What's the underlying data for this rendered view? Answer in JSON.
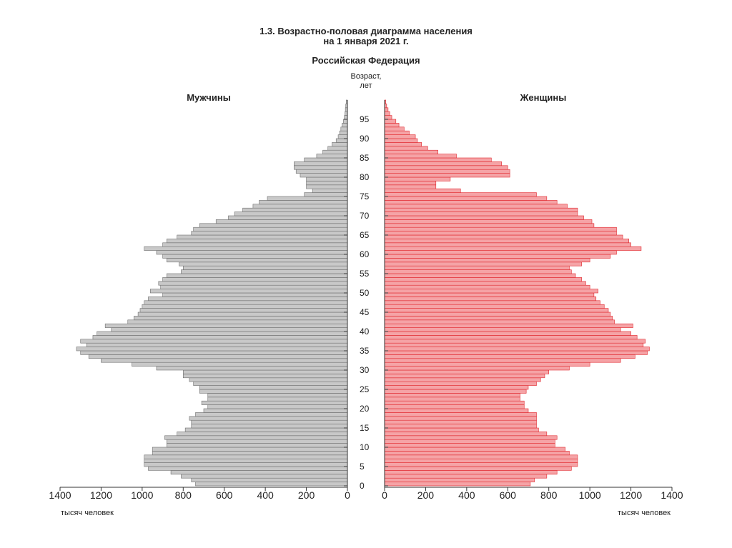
{
  "chart_data": {
    "type": "bar",
    "title_line1": "1.3. Возрастно-половая диаграмма населения",
    "title_line2": "на 1 января 2021 г.",
    "subtitle": "Российская Федерация",
    "age_axis_label_line1": "Возраст,",
    "age_axis_label_line2": "лет",
    "unit_label_left": "тысяч человек",
    "unit_label_right": "тысяч человек",
    "x_ticks_left": [
      "1400",
      "1200",
      "1000",
      "800",
      "600",
      "400",
      "200",
      "0"
    ],
    "x_ticks_right": [
      "0",
      "200",
      "400",
      "600",
      "800",
      "1000",
      "1200",
      "1400"
    ],
    "age_ticks": [
      "0",
      "5",
      "10",
      "15",
      "20",
      "25",
      "30",
      "35",
      "40",
      "45",
      "50",
      "55",
      "60",
      "65",
      "70",
      "75",
      "80",
      "85",
      "90",
      "95"
    ],
    "xlim": [
      0,
      1400
    ],
    "ages": [
      0,
      1,
      2,
      3,
      4,
      5,
      6,
      7,
      8,
      9,
      10,
      11,
      12,
      13,
      14,
      15,
      16,
      17,
      18,
      19,
      20,
      21,
      22,
      23,
      24,
      25,
      26,
      27,
      28,
      29,
      30,
      31,
      32,
      33,
      34,
      35,
      36,
      37,
      38,
      39,
      40,
      41,
      42,
      43,
      44,
      45,
      46,
      47,
      48,
      49,
      50,
      51,
      52,
      53,
      54,
      55,
      56,
      57,
      58,
      59,
      60,
      61,
      62,
      63,
      64,
      65,
      66,
      67,
      68,
      69,
      70,
      71,
      72,
      73,
      74,
      75,
      76,
      77,
      78,
      79,
      80,
      81,
      82,
      83,
      84,
      85,
      86,
      87,
      88,
      89,
      90,
      91,
      92,
      93,
      94,
      95,
      96,
      97,
      98,
      99
    ],
    "series": [
      {
        "name": "Мужчины",
        "color": "#c8c8c8",
        "values": [
          740,
          760,
          810,
          860,
          970,
          990,
          990,
          990,
          950,
          950,
          880,
          880,
          890,
          830,
          790,
          760,
          760,
          770,
          740,
          700,
          680,
          710,
          680,
          680,
          720,
          720,
          750,
          770,
          800,
          800,
          930,
          1050,
          1200,
          1260,
          1300,
          1320,
          1270,
          1300,
          1240,
          1220,
          1150,
          1180,
          1070,
          1040,
          1020,
          1010,
          1000,
          990,
          970,
          900,
          960,
          910,
          920,
          900,
          880,
          810,
          800,
          820,
          880,
          900,
          930,
          990,
          900,
          880,
          830,
          760,
          750,
          720,
          640,
          580,
          550,
          510,
          460,
          430,
          390,
          210,
          170,
          200,
          200,
          200,
          230,
          250,
          260,
          260,
          210,
          150,
          120,
          95,
          75,
          55,
          45,
          38,
          32,
          26,
          20,
          15,
          12,
          10,
          8,
          6,
          5,
          4
        ]
      },
      {
        "name": "Женщины",
        "color": "#f5a3a6",
        "values": [
          710,
          730,
          790,
          840,
          910,
          940,
          940,
          940,
          900,
          880,
          830,
          830,
          840,
          790,
          750,
          740,
          740,
          740,
          740,
          700,
          680,
          680,
          660,
          660,
          690,
          700,
          740,
          760,
          780,
          800,
          900,
          1000,
          1150,
          1220,
          1280,
          1290,
          1260,
          1270,
          1230,
          1200,
          1150,
          1210,
          1120,
          1110,
          1100,
          1090,
          1070,
          1050,
          1030,
          1020,
          1040,
          1000,
          980,
          960,
          930,
          910,
          900,
          960,
          1000,
          1100,
          1130,
          1250,
          1200,
          1190,
          1160,
          1130,
          1130,
          1020,
          1010,
          970,
          940,
          940,
          890,
          840,
          790,
          740,
          370,
          250,
          250,
          320,
          610,
          610,
          600,
          570,
          520,
          350,
          260,
          210,
          180,
          160,
          150,
          120,
          95,
          70,
          55,
          35,
          25,
          17,
          10,
          6
        ]
      }
    ]
  }
}
